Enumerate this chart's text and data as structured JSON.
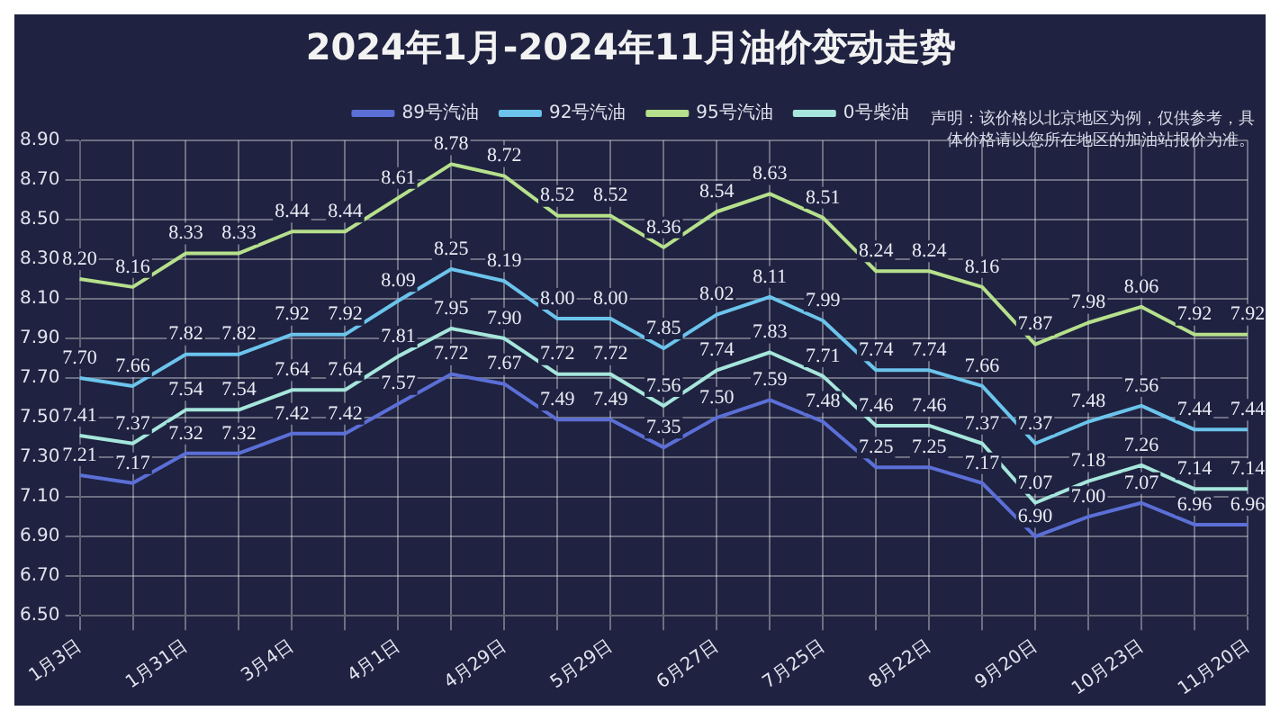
{
  "chart_data": {
    "type": "line",
    "title": "2024年1月-2024年11月油价变动走势",
    "annotations": [
      "声明：该价格以北京地区为例，仅供参考，具体价格请以您所在地区的加油站报价为准。"
    ],
    "categories": [
      "1月3日",
      null,
      "1月31日",
      null,
      "3月4日",
      null,
      "4月1日",
      null,
      "4月29日",
      null,
      "5月29日",
      null,
      "6月27日",
      null,
      "7月25日",
      null,
      "8月22日",
      null,
      "9月20日",
      null,
      "10月23日",
      null,
      "11月20日"
    ],
    "series": [
      {
        "name": "89号汽油",
        "color": "#5b6fd6",
        "values": [
          7.21,
          7.17,
          7.32,
          7.32,
          7.42,
          7.42,
          7.57,
          7.72,
          7.67,
          7.49,
          7.49,
          7.35,
          7.5,
          7.59,
          7.48,
          7.25,
          7.25,
          7.17,
          6.9,
          7.0,
          7.07,
          6.96,
          6.96
        ],
        "value_labels": [
          "7.21",
          "7.17",
          "7.32",
          "7.32",
          "7.42",
          "7.42",
          "7.57",
          "7.72",
          "7.67",
          "7.49",
          "7.49",
          "7.35",
          "7.50",
          "7.59",
          "7.48",
          "7.25",
          "7.25",
          "7.17",
          "6.90",
          "7.00",
          "7.07",
          "6.96",
          "6.96"
        ]
      },
      {
        "name": "92号汽油",
        "color": "#6cc4ec",
        "values": [
          7.7,
          7.66,
          7.82,
          7.82,
          7.92,
          7.92,
          8.09,
          8.25,
          8.19,
          8.0,
          8.0,
          7.85,
          8.02,
          8.11,
          7.99,
          7.74,
          7.74,
          7.66,
          7.37,
          7.48,
          7.56,
          7.44,
          7.44
        ],
        "value_labels": [
          "7.70",
          "7.66",
          "7.82",
          "7.82",
          "7.92",
          "7.92",
          "8.09",
          "8.25",
          "8.19",
          "8.00",
          "8.00",
          "7.85",
          "8.02",
          "8.11",
          "7.99",
          "7.74",
          "7.74",
          "7.66",
          "7.37",
          "7.48",
          "7.56",
          "7.44",
          "7.44"
        ]
      },
      {
        "name": "95号汽油",
        "color": "#b6e08c",
        "values": [
          8.2,
          8.16,
          8.33,
          8.33,
          8.44,
          8.44,
          8.61,
          8.78,
          8.72,
          8.52,
          8.52,
          8.36,
          8.54,
          8.63,
          8.51,
          8.24,
          8.24,
          8.16,
          7.87,
          7.98,
          8.06,
          7.92,
          7.92
        ],
        "value_labels": [
          "8.20",
          "8.16",
          "8.33",
          "8.33",
          "8.44",
          "8.44",
          "8.61",
          "8.78",
          "8.72",
          "8.52",
          "8.52",
          "8.36",
          "8.54",
          "8.63",
          "8.51",
          "8.24",
          "8.24",
          "8.16",
          "7.87",
          "7.98",
          "8.06",
          "7.92",
          "7.92"
        ]
      },
      {
        "name": "0号柴油",
        "color": "#a6e6dc",
        "values": [
          7.41,
          7.37,
          7.54,
          7.54,
          7.64,
          7.64,
          7.81,
          7.95,
          7.9,
          7.72,
          7.72,
          7.56,
          7.74,
          7.83,
          7.71,
          7.46,
          7.46,
          7.37,
          7.07,
          7.18,
          7.26,
          7.14,
          7.14
        ],
        "value_labels": [
          "7.41",
          "7.37",
          "7.54",
          "7.54",
          "7.64",
          "7.64",
          "7.81",
          "7.95",
          "7.90",
          "7.72",
          "7.72",
          "7.56",
          "7.74",
          "7.83",
          "7.71",
          "7.46",
          "7.46",
          "7.37",
          "7.07",
          "7.18",
          "7.26",
          "7.14",
          "7.14"
        ]
      }
    ],
    "ylim": [
      6.5,
      8.9
    ],
    "yticks": [
      {
        "value": 6.5,
        "label": "6.50"
      },
      {
        "value": 6.7,
        "label": "6.70"
      },
      {
        "value": 6.9,
        "label": "6.90"
      },
      {
        "value": 7.1,
        "label": "7.10"
      },
      {
        "value": 7.3,
        "label": "7.30"
      },
      {
        "value": 7.5,
        "label": "7.50"
      },
      {
        "value": 7.7,
        "label": "7.70"
      },
      {
        "value": 7.9,
        "label": "7.90"
      },
      {
        "value": 8.1,
        "label": "8.10"
      },
      {
        "value": 8.3,
        "label": "8.30"
      },
      {
        "value": 8.5,
        "label": "8.50"
      },
      {
        "value": 8.7,
        "label": "8.70"
      },
      {
        "value": 8.9,
        "label": "8.90"
      }
    ],
    "grid": true,
    "legend": "top",
    "marker": "none",
    "line_style": "solid"
  }
}
